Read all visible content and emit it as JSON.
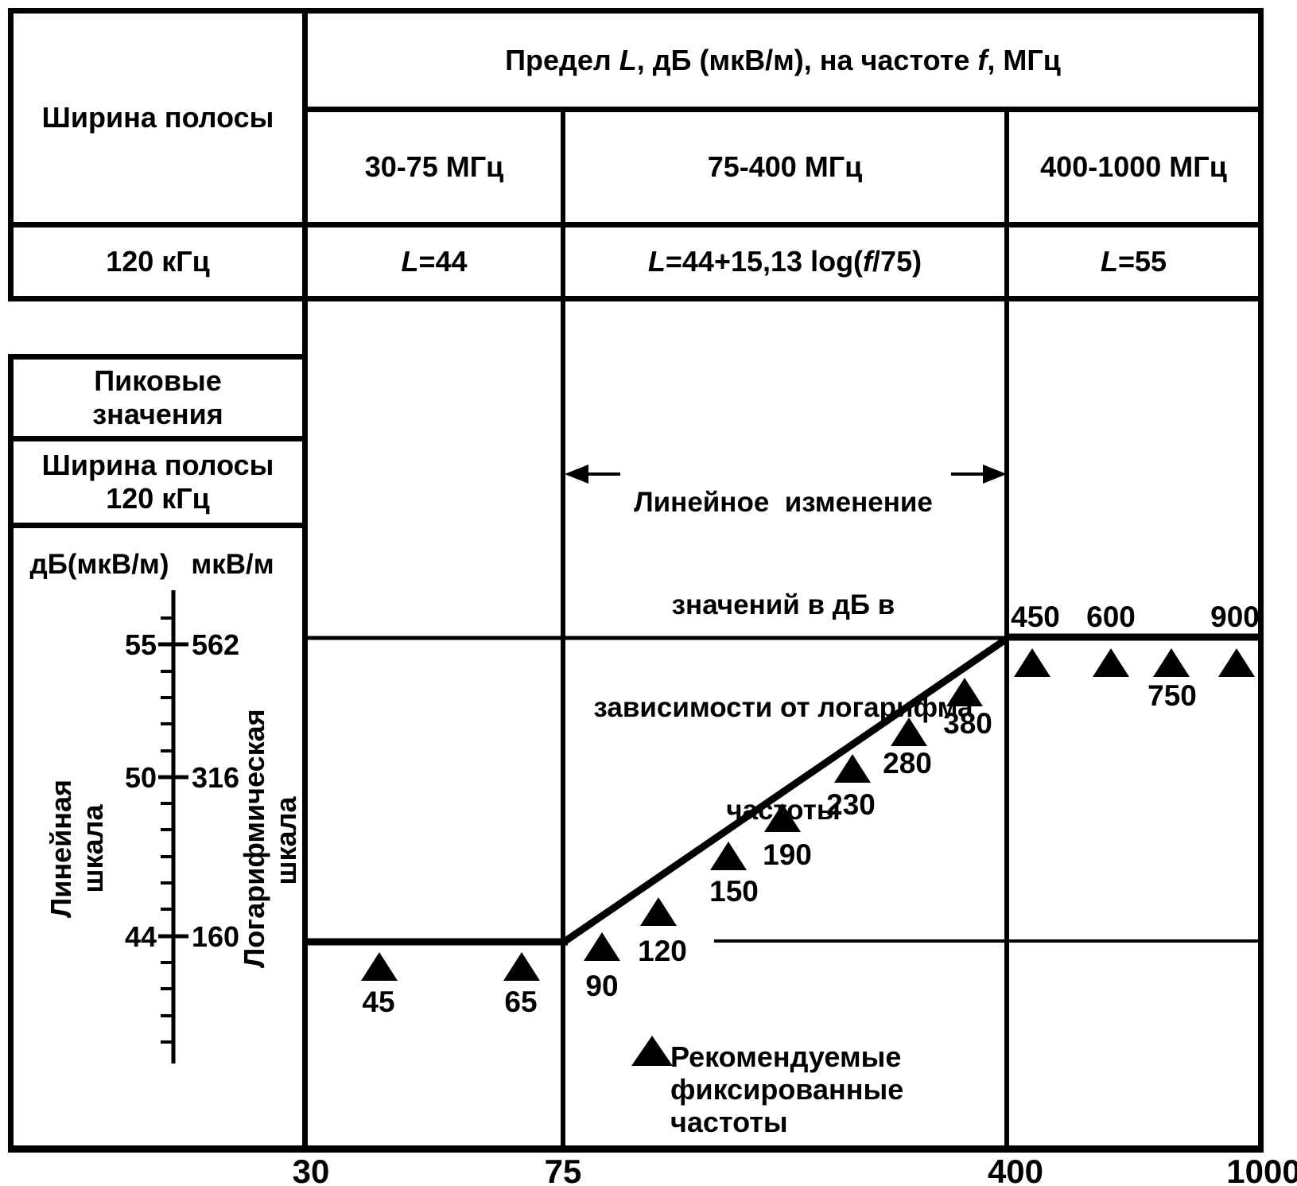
{
  "table": {
    "limit_header": {
      "part1": "Предел ",
      "var_l": "L",
      "part2": ", дБ (мкВ/м), на частоте ",
      "var_f": "f",
      "part3": ", МГц"
    },
    "bandwidth_header": "Ширина полосы",
    "bandwidth_value": "120 кГц",
    "bands": [
      "30-75 МГц",
      "75-400 МГц",
      "400-1000 МГц"
    ],
    "formulas": {
      "band1": {
        "var_l": "L",
        "rest": "=44"
      },
      "band2": {
        "var_l": "L",
        "mid": "=44+15,13 log(",
        "var_f": "f",
        "rest": "/75)"
      },
      "band3": {
        "var_l": "L",
        "rest": "=55"
      }
    }
  },
  "peak_box": {
    "line1": "Пиковые",
    "line2": "значения"
  },
  "bandwidth_box": {
    "line1": "Ширина полосы",
    "line2": "120 кГц"
  },
  "scale_headers": {
    "db": "дБ(мкВ/м)",
    "uvm": "мкВ/м"
  },
  "scale_labels": {
    "linear_line1": "Линейная",
    "linear_line2": "шкала",
    "log_line1": "Логарифмическая",
    "log_line2": "шкала"
  },
  "annotation": {
    "line1": "Линейное  изменение",
    "line2": "значений в дБ в",
    "line3": "зависимости от логарифма",
    "line4": "частоты"
  },
  "legend": {
    "line1": "Рекомендуемые",
    "line2": "фиксированные",
    "line3": "частоты"
  },
  "chart_data": {
    "type": "line",
    "title": "Предел L, дБ (мкВ/м), на частоте f, МГц",
    "x_scale": "log",
    "x_unit": "МГц",
    "x_range": [
      30,
      1000
    ],
    "x_ticks": [
      "30",
      "75",
      "400",
      "1000"
    ],
    "y_db_ticks": [
      "55",
      "50",
      "44"
    ],
    "y_uvm_ticks": [
      "562",
      "316",
      "160"
    ],
    "y_unit_db": "дБ(мкВ/м)",
    "y_unit_uvm": "мкВ/м",
    "limit_line": [
      {
        "f": 30,
        "L": 44
      },
      {
        "f": 75,
        "L": 44
      },
      {
        "f": 400,
        "L": 55
      },
      {
        "f": 1000,
        "L": 55
      }
    ],
    "limit_segments": [
      {
        "band": "30-75 МГц",
        "formula": "L=44"
      },
      {
        "band": "75-400 МГц",
        "formula": "L=44+15,13 log(f/75)"
      },
      {
        "band": "400-1000 МГц",
        "formula": "L=55"
      }
    ],
    "recommended_frequencies": [
      "45",
      "65",
      "90",
      "120",
      "150",
      "190",
      "230",
      "280",
      "380",
      "450",
      "600",
      "750",
      "900"
    ]
  }
}
